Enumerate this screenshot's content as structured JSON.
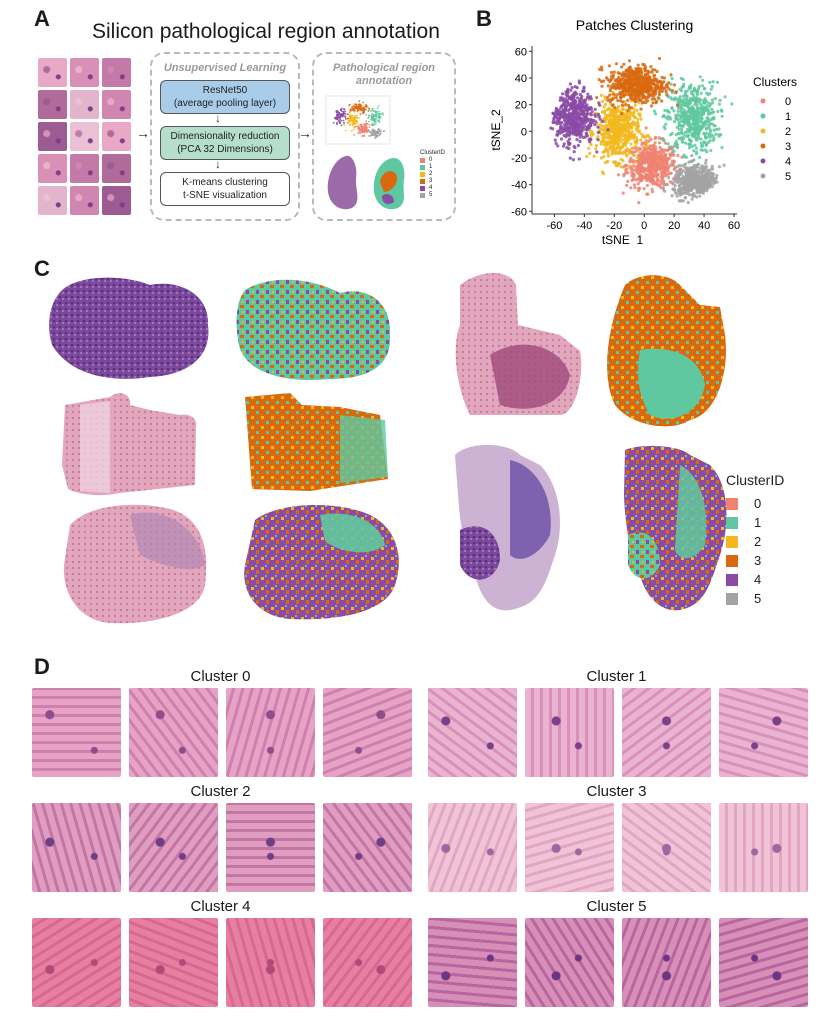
{
  "figure": {
    "panel_a": {
      "letter": "A",
      "title": "Silicon pathological region annotation",
      "unsupervised_label": "Unsupervised Learning",
      "steps": [
        {
          "line1": "ResNet50",
          "line2": "(average pooling layer)",
          "color": "#a9cde8"
        },
        {
          "line1": "Dimensionality reduction",
          "line2": "(PCA 32 Dimensions)",
          "color": "#b5dfcc"
        },
        {
          "line1": "K-means clustering",
          "line2": "t-SNE visualization",
          "color": "#ffffff"
        }
      ],
      "annotation_label_line1": "Pathological region",
      "annotation_label_line2": "annotation",
      "mini_legend_title": "ClusterID",
      "mini_legend_items": [
        "0",
        "1",
        "2",
        "3",
        "4",
        "5"
      ]
    },
    "panel_b": {
      "letter": "B"
    },
    "panel_c": {
      "letter": "C",
      "legend_title": "ClusterID",
      "legend_items": [
        "0",
        "1",
        "2",
        "3",
        "4",
        "5"
      ]
    },
    "panel_d": {
      "letter": "D",
      "clusters": [
        "Cluster 0",
        "Cluster 1",
        "Cluster 2",
        "Cluster 3",
        "Cluster 4",
        "Cluster 5"
      ]
    },
    "cluster_colors": [
      "#f08272",
      "#5fc8a0",
      "#f2b81c",
      "#d9690f",
      "#8a4aa6",
      "#a3a3a3"
    ]
  },
  "chart_data": {
    "type": "scatter",
    "title": "Patches Clustering",
    "xlabel": "tSNE_1",
    "ylabel": "tSNE_2",
    "xlim": [
      -75,
      62
    ],
    "ylim": [
      -62,
      64
    ],
    "xticks": [
      "-60",
      "-40",
      "-20",
      "0",
      "20",
      "40",
      "60"
    ],
    "yticks": [
      "60",
      "40",
      "20",
      "0",
      "-20",
      "-40",
      "-60"
    ],
    "legend_title": "Clusters",
    "legend_position": "right",
    "series": [
      {
        "name": "0",
        "color": "#f08272",
        "center": [
          5,
          -25
        ],
        "spread": [
          14,
          14
        ]
      },
      {
        "name": "1",
        "color": "#5fc8a0",
        "center": [
          32,
          10
        ],
        "spread": [
          14,
          22
        ]
      },
      {
        "name": "2",
        "color": "#f2b81c",
        "center": [
          -18,
          0
        ],
        "spread": [
          12,
          18
        ]
      },
      {
        "name": "3",
        "color": "#d9690f",
        "center": [
          -5,
          35
        ],
        "spread": [
          16,
          12
        ]
      },
      {
        "name": "4",
        "color": "#8a4aa6",
        "center": [
          -48,
          12
        ],
        "spread": [
          12,
          18
        ]
      },
      {
        "name": "5",
        "color": "#a3a3a3",
        "center": [
          35,
          -38
        ],
        "spread": [
          13,
          10
        ]
      }
    ]
  }
}
